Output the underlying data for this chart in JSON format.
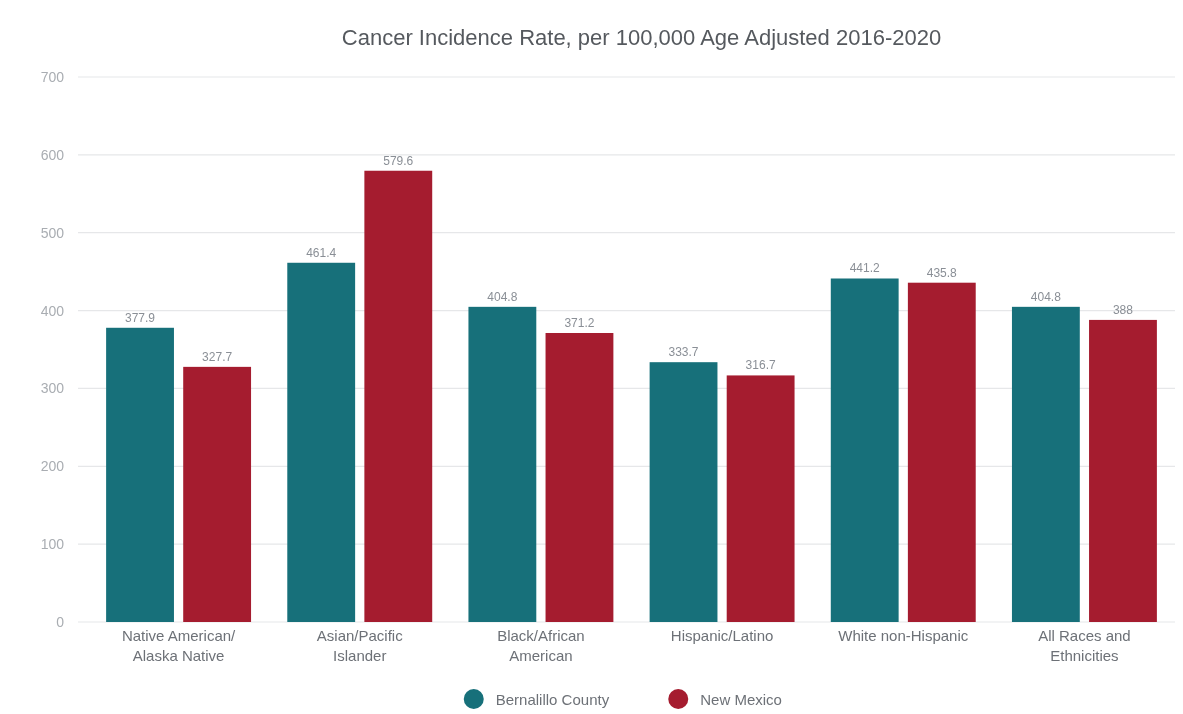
{
  "chart_data": {
    "type": "bar",
    "title": "Cancer Incidence Rate, per 100,000 Age Adjusted 2016-2020",
    "categories": [
      "Native American/Alaska Native",
      "Asian/Pacific Islander",
      "Black/African American",
      "Hispanic/Latino",
      "White non-Hispanic",
      "All Races and Ethnicities"
    ],
    "series": [
      {
        "name": "Bernalillo County",
        "color": "#17707a",
        "values": [
          377.9,
          461.4,
          404.8,
          333.7,
          441.2,
          404.8
        ]
      },
      {
        "name": "New Mexico",
        "color": "#a51c2f",
        "values": [
          327.7,
          579.6,
          371.2,
          316.7,
          435.8,
          388
        ]
      }
    ],
    "ylim": [
      0,
      700
    ],
    "yticks": [
      0,
      100,
      200,
      300,
      400,
      500,
      600,
      700
    ],
    "grid": "y",
    "legend": "bottom",
    "data_labels": true
  }
}
